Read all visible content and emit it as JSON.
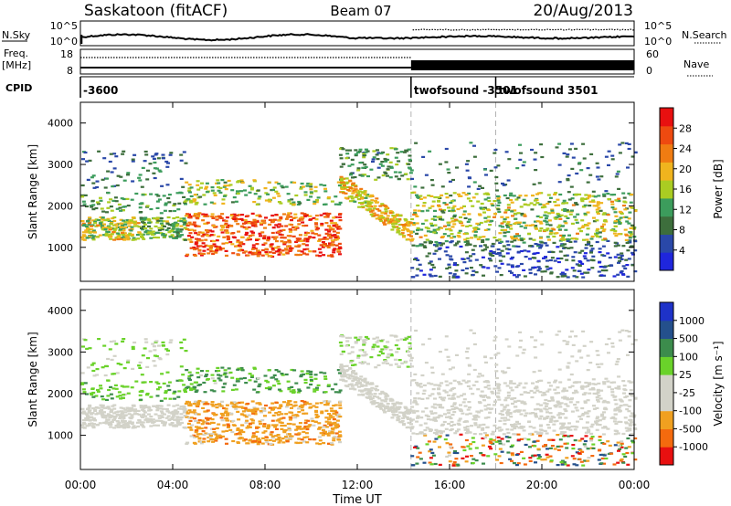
{
  "header": {
    "station": "Saskatoon (fitACF)",
    "beam": "Beam 07",
    "date": "20/Aug/2013"
  },
  "params": {
    "nsky_label": "N.Sky",
    "nsearch_label": "N.Search",
    "noise_ticks": [
      "10^5",
      "10^0"
    ],
    "freq_label": "Freq.",
    "freq_unit": "[MHz]",
    "freq_ticks": [
      "18",
      "8"
    ],
    "nave_label": "Nave",
    "nave_ticks": [
      "60",
      "0"
    ],
    "cpid_label": "CPID",
    "cpid_entries": [
      {
        "label": "-3600",
        "time": 0.0
      },
      {
        "label": "twofsound -3501",
        "time": 14.33
      },
      {
        "label": "twofsound 3501",
        "time": 18.0
      }
    ]
  },
  "x_axis": {
    "label": "Time UT",
    "ticks": [
      "00:00",
      "04:00",
      "08:00",
      "12:00",
      "16:00",
      "20:00",
      "00:00"
    ]
  },
  "colors": {
    "power": [
      "#1f26dc",
      "#2a48a8",
      "#3d6e3c",
      "#3c9c5c",
      "#aacc22",
      "#f0b41e",
      "#f07c12",
      "#ee4a10",
      "#e81010"
    ],
    "velocity": [
      "#e81010",
      "#f46a0e",
      "#f0a020",
      "#c8c8be",
      "#c8c8be",
      "#6ad22a",
      "#3c8c4c",
      "#24508c",
      "#1e32c8"
    ],
    "gray": "#d2d2c8"
  },
  "chart_data": [
    {
      "type": "heatmap",
      "name": "Power",
      "ylabel": "Slant Range [km]",
      "xlabel": "Time UT",
      "xlim": [
        0,
        24
      ],
      "ylim": [
        180,
        4500
      ],
      "yticks": [
        "1000",
        "2000",
        "3000",
        "4000"
      ],
      "colorbar": {
        "label": "Power [dB]",
        "ticks": [
          "28",
          "24",
          "20",
          "16",
          "12",
          "8",
          "4"
        ],
        "range": [
          0,
          32
        ]
      },
      "echo_regions": [
        {
          "time": [
            0,
            2
          ],
          "range": [
            1200,
            1800
          ],
          "value": 16
        },
        {
          "time": [
            2,
            4
          ],
          "range": [
            1100,
            1600
          ],
          "value": 12
        },
        {
          "time": [
            4,
            11
          ],
          "range": [
            700,
            1800
          ],
          "value": 28
        },
        {
          "time": [
            11,
            14.3
          ],
          "range": [
            1200,
            2600
          ],
          "value": 16
        },
        {
          "time": [
            14.3,
            24
          ],
          "range": [
            1100,
            2300
          ],
          "value": 16
        },
        {
          "time": [
            14.3,
            24
          ],
          "range": [
            200,
            1000
          ],
          "value": 8
        }
      ]
    },
    {
      "type": "heatmap",
      "name": "Velocity",
      "ylabel": "Slant Range [km]",
      "xlabel": "Time UT",
      "xlim": [
        0,
        24
      ],
      "ylim": [
        180,
        4500
      ],
      "yticks": [
        "1000",
        "2000",
        "3000",
        "4000"
      ],
      "colorbar": {
        "label": "Velocity [m s⁻¹]",
        "ticks": [
          "1000",
          "500",
          "100",
          "25",
          "-25",
          "-100",
          "-500",
          "-1000"
        ]
      },
      "echo_regions": [
        {
          "time": [
            0,
            5
          ],
          "range": [
            1100,
            1700
          ],
          "value": 0
        },
        {
          "time": [
            5,
            11
          ],
          "range": [
            900,
            1700
          ],
          "value": -150
        },
        {
          "time": [
            11,
            24
          ],
          "range": [
            900,
            2300
          ],
          "value": 0
        },
        {
          "time": [
            2,
            4
          ],
          "range": [
            1900,
            2300
          ],
          "value": 300
        }
      ]
    }
  ]
}
